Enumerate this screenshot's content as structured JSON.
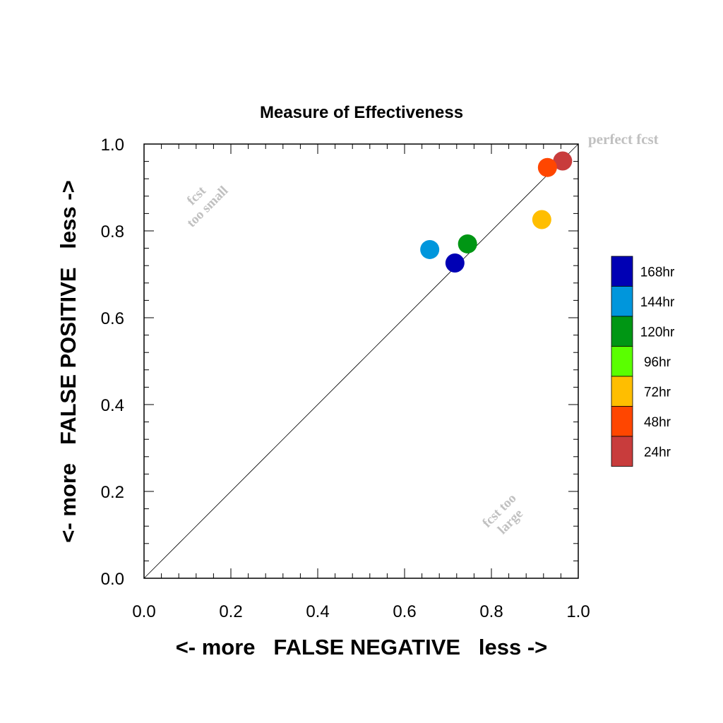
{
  "chart_data": {
    "type": "scatter",
    "title": "Measure of Effectiveness",
    "xlabel": "<- more   FALSE NEGATIVE   less ->",
    "ylabel": "<- more   FALSE POSITIVE   less ->",
    "xlim": [
      0.0,
      1.0
    ],
    "ylim": [
      0.0,
      1.0
    ],
    "x_ticks": [
      "0.0",
      "0.2",
      "0.4",
      "0.6",
      "0.8",
      "1.0"
    ],
    "y_ticks": [
      "0.0",
      "0.2",
      "0.4",
      "0.6",
      "0.8",
      "1.0"
    ],
    "grid": false,
    "reference_line": "diagonal",
    "legend_position": "right",
    "annotations": {
      "perfect": "perfect fcst",
      "too_small": [
        "fcst",
        "too small"
      ],
      "too_large": [
        "fcst too",
        "large"
      ]
    },
    "series": [
      {
        "name": "168hr",
        "color": "#0000b4",
        "x": 0.716,
        "y": 0.726
      },
      {
        "name": "144hr",
        "color": "#0096dc",
        "x": 0.658,
        "y": 0.757
      },
      {
        "name": "120hr",
        "color": "#009614",
        "x": 0.745,
        "y": 0.77
      },
      {
        "name": "96hr",
        "color": "#5aff00",
        "x": null,
        "y": null
      },
      {
        "name": "72hr",
        "color": "#ffbe00",
        "x": 0.916,
        "y": 0.826
      },
      {
        "name": "48hr",
        "color": "#ff4600",
        "x": 0.929,
        "y": 0.946
      },
      {
        "name": "24hr",
        "color": "#c83c3c",
        "x": 0.964,
        "y": 0.961
      }
    ]
  }
}
